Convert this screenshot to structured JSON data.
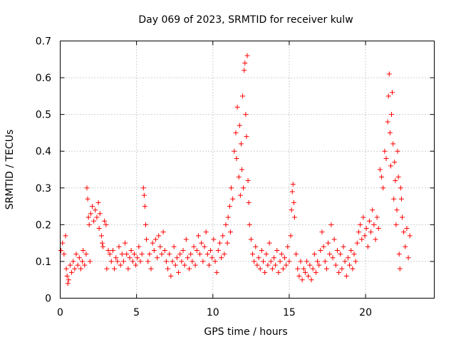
{
  "chart_data": {
    "type": "scatter",
    "title": "Day 069 of 2023, SRMTID for receiver kulw",
    "xlabel": "GPS time / hours",
    "ylabel": "SRMTID / TECUs",
    "xlim": [
      0,
      24.5
    ],
    "ylim": [
      0,
      0.7
    ],
    "xticks": [
      0,
      5,
      10,
      15,
      20
    ],
    "yticks": [
      0,
      0.1,
      0.2,
      0.3,
      0.4,
      0.5,
      0.6,
      0.7
    ],
    "xtick_labels": [
      "0",
      "5",
      "10",
      "15",
      "20"
    ],
    "ytick_labels": [
      "0",
      "0.1",
      "0.2",
      "0.3",
      "0.4",
      "0.5",
      "0.6",
      "0.7"
    ],
    "grid": true,
    "marker": "+",
    "color": "#ff0000",
    "series": [
      {
        "name": "kulw",
        "points": [
          [
            0.05,
            0.13
          ],
          [
            0.15,
            0.15
          ],
          [
            0.25,
            0.12
          ],
          [
            0.35,
            0.17
          ],
          [
            0.4,
            0.08
          ],
          [
            0.45,
            0.06
          ],
          [
            0.5,
            0.04
          ],
          [
            0.55,
            0.05
          ],
          [
            0.65,
            0.09
          ],
          [
            0.75,
            0.07
          ],
          [
            0.85,
            0.1
          ],
          [
            0.95,
            0.08
          ],
          [
            1.05,
            0.12
          ],
          [
            1.15,
            0.09
          ],
          [
            1.25,
            0.11
          ],
          [
            1.35,
            0.08
          ],
          [
            1.45,
            0.1
          ],
          [
            1.5,
            0.13
          ],
          [
            1.6,
            0.09
          ],
          [
            1.7,
            0.12
          ],
          [
            1.75,
            0.3
          ],
          [
            1.8,
            0.27
          ],
          [
            1.85,
            0.22
          ],
          [
            1.9,
            0.2
          ],
          [
            1.95,
            0.1
          ],
          [
            2.0,
            0.23
          ],
          [
            2.1,
            0.25
          ],
          [
            2.2,
            0.21
          ],
          [
            2.3,
            0.24
          ],
          [
            2.4,
            0.22
          ],
          [
            2.5,
            0.26
          ],
          [
            2.55,
            0.19
          ],
          [
            2.6,
            0.23
          ],
          [
            2.7,
            0.17
          ],
          [
            2.75,
            0.15
          ],
          [
            2.8,
            0.14
          ],
          [
            2.9,
            0.21
          ],
          [
            3.0,
            0.2
          ],
          [
            3.05,
            0.08
          ],
          [
            3.15,
            0.13
          ],
          [
            3.25,
            0.12
          ],
          [
            3.35,
            0.1
          ],
          [
            3.45,
            0.13
          ],
          [
            3.55,
            0.08
          ],
          [
            3.65,
            0.11
          ],
          [
            3.75,
            0.1
          ],
          [
            3.85,
            0.14
          ],
          [
            3.95,
            0.09
          ],
          [
            4.05,
            0.12
          ],
          [
            4.15,
            0.1
          ],
          [
            4.25,
            0.15
          ],
          [
            4.35,
            0.12
          ],
          [
            4.45,
            0.08
          ],
          [
            4.55,
            0.11
          ],
          [
            4.65,
            0.13
          ],
          [
            4.75,
            0.1
          ],
          [
            4.85,
            0.12
          ],
          [
            4.95,
            0.09
          ],
          [
            5.05,
            0.11
          ],
          [
            5.15,
            0.14
          ],
          [
            5.25,
            0.1
          ],
          [
            5.35,
            0.12
          ],
          [
            5.45,
            0.3
          ],
          [
            5.5,
            0.28
          ],
          [
            5.55,
            0.25
          ],
          [
            5.6,
            0.2
          ],
          [
            5.65,
            0.16
          ],
          [
            5.75,
            0.1
          ],
          [
            5.85,
            0.12
          ],
          [
            5.95,
            0.08
          ],
          [
            6.05,
            0.15
          ],
          [
            6.15,
            0.13
          ],
          [
            6.25,
            0.16
          ],
          [
            6.35,
            0.11
          ],
          [
            6.45,
            0.17
          ],
          [
            6.55,
            0.14
          ],
          [
            6.65,
            0.12
          ],
          [
            6.75,
            0.18
          ],
          [
            6.85,
            0.13
          ],
          [
            6.95,
            0.1
          ],
          [
            7.05,
            0.08
          ],
          [
            7.15,
            0.12
          ],
          [
            7.25,
            0.06
          ],
          [
            7.35,
            0.1
          ],
          [
            7.45,
            0.14
          ],
          [
            7.55,
            0.09
          ],
          [
            7.65,
            0.11
          ],
          [
            7.75,
            0.07
          ],
          [
            7.85,
            0.12
          ],
          [
            7.95,
            0.1
          ],
          [
            8.05,
            0.13
          ],
          [
            8.15,
            0.09
          ],
          [
            8.25,
            0.16
          ],
          [
            8.35,
            0.11
          ],
          [
            8.45,
            0.08
          ],
          [
            8.55,
            0.12
          ],
          [
            8.65,
            0.1
          ],
          [
            8.75,
            0.14
          ],
          [
            8.85,
            0.09
          ],
          [
            8.95,
            0.13
          ],
          [
            9.05,
            0.17
          ],
          [
            9.15,
            0.12
          ],
          [
            9.25,
            0.15
          ],
          [
            9.35,
            0.1
          ],
          [
            9.45,
            0.14
          ],
          [
            9.55,
            0.18
          ],
          [
            9.65,
            0.12
          ],
          [
            9.75,
            0.09
          ],
          [
            9.85,
            0.13
          ],
          [
            9.95,
            0.11
          ],
          [
            10.05,
            0.16
          ],
          [
            10.15,
            0.1
          ],
          [
            10.25,
            0.07
          ],
          [
            10.35,
            0.13
          ],
          [
            10.45,
            0.15
          ],
          [
            10.55,
            0.11
          ],
          [
            10.65,
            0.17
          ],
          [
            10.75,
            0.12
          ],
          [
            10.85,
            0.2
          ],
          [
            10.95,
            0.15
          ],
          [
            11.0,
            0.22
          ],
          [
            11.1,
            0.25
          ],
          [
            11.15,
            0.18
          ],
          [
            11.2,
            0.3
          ],
          [
            11.3,
            0.27
          ],
          [
            11.4,
            0.4
          ],
          [
            11.5,
            0.45
          ],
          [
            11.55,
            0.38
          ],
          [
            11.6,
            0.52
          ],
          [
            11.7,
            0.33
          ],
          [
            11.75,
            0.47
          ],
          [
            11.8,
            0.28
          ],
          [
            11.85,
            0.42
          ],
          [
            11.9,
            0.35
          ],
          [
            11.95,
            0.55
          ],
          [
            12.0,
            0.3
          ],
          [
            12.05,
            0.62
          ],
          [
            12.1,
            0.64
          ],
          [
            12.15,
            0.5
          ],
          [
            12.2,
            0.44
          ],
          [
            12.25,
            0.66
          ],
          [
            12.3,
            0.32
          ],
          [
            12.35,
            0.26
          ],
          [
            12.4,
            0.2
          ],
          [
            12.5,
            0.16
          ],
          [
            12.6,
            0.12
          ],
          [
            12.7,
            0.1
          ],
          [
            12.8,
            0.14
          ],
          [
            12.9,
            0.09
          ],
          [
            13.0,
            0.11
          ],
          [
            13.1,
            0.08
          ],
          [
            13.2,
            0.13
          ],
          [
            13.3,
            0.1
          ],
          [
            13.4,
            0.07
          ],
          [
            13.5,
            0.12
          ],
          [
            13.6,
            0.09
          ],
          [
            13.7,
            0.15
          ],
          [
            13.8,
            0.1
          ],
          [
            13.9,
            0.08
          ],
          [
            14.0,
            0.11
          ],
          [
            14.1,
            0.09
          ],
          [
            14.2,
            0.13
          ],
          [
            14.3,
            0.07
          ],
          [
            14.4,
            0.1
          ],
          [
            14.5,
            0.12
          ],
          [
            14.6,
            0.08
          ],
          [
            14.7,
            0.11
          ],
          [
            14.8,
            0.09
          ],
          [
            14.9,
            0.14
          ],
          [
            15.0,
            0.1
          ],
          [
            15.1,
            0.17
          ],
          [
            15.15,
            0.24
          ],
          [
            15.2,
            0.29
          ],
          [
            15.25,
            0.31
          ],
          [
            15.3,
            0.26
          ],
          [
            15.35,
            0.22
          ],
          [
            15.45,
            0.12
          ],
          [
            15.55,
            0.08
          ],
          [
            15.65,
            0.06
          ],
          [
            15.75,
            0.1
          ],
          [
            15.85,
            0.05
          ],
          [
            15.95,
            0.08
          ],
          [
            16.05,
            0.07
          ],
          [
            16.15,
            0.1
          ],
          [
            16.25,
            0.06
          ],
          [
            16.35,
            0.09
          ],
          [
            16.45,
            0.05
          ],
          [
            16.55,
            0.08
          ],
          [
            16.65,
            0.12
          ],
          [
            16.75,
            0.07
          ],
          [
            16.85,
            0.1
          ],
          [
            16.95,
            0.09
          ],
          [
            17.05,
            0.13
          ],
          [
            17.15,
            0.18
          ],
          [
            17.25,
            0.14
          ],
          [
            17.35,
            0.1
          ],
          [
            17.45,
            0.08
          ],
          [
            17.55,
            0.15
          ],
          [
            17.65,
            0.12
          ],
          [
            17.75,
            0.2
          ],
          [
            17.85,
            0.11
          ],
          [
            17.95,
            0.16
          ],
          [
            18.05,
            0.09
          ],
          [
            18.15,
            0.13
          ],
          [
            18.25,
            0.07
          ],
          [
            18.35,
            0.12
          ],
          [
            18.45,
            0.08
          ],
          [
            18.55,
            0.14
          ],
          [
            18.65,
            0.1
          ],
          [
            18.75,
            0.06
          ],
          [
            18.85,
            0.11
          ],
          [
            18.95,
            0.09
          ],
          [
            19.05,
            0.13
          ],
          [
            19.15,
            0.08
          ],
          [
            19.25,
            0.12
          ],
          [
            19.35,
            0.1
          ],
          [
            19.45,
            0.15
          ],
          [
            19.55,
            0.18
          ],
          [
            19.65,
            0.2
          ],
          [
            19.75,
            0.16
          ],
          [
            19.85,
            0.22
          ],
          [
            19.95,
            0.17
          ],
          [
            20.05,
            0.19
          ],
          [
            20.15,
            0.14
          ],
          [
            20.25,
            0.21
          ],
          [
            20.35,
            0.18
          ],
          [
            20.45,
            0.24
          ],
          [
            20.55,
            0.2
          ],
          [
            20.65,
            0.16
          ],
          [
            20.75,
            0.22
          ],
          [
            20.85,
            0.19
          ],
          [
            20.95,
            0.35
          ],
          [
            21.05,
            0.33
          ],
          [
            21.15,
            0.3
          ],
          [
            21.25,
            0.4
          ],
          [
            21.35,
            0.38
          ],
          [
            21.45,
            0.48
          ],
          [
            21.5,
            0.55
          ],
          [
            21.55,
            0.61
          ],
          [
            21.6,
            0.45
          ],
          [
            21.65,
            0.36
          ],
          [
            21.7,
            0.5
          ],
          [
            21.75,
            0.56
          ],
          [
            21.8,
            0.42
          ],
          [
            21.85,
            0.27
          ],
          [
            21.9,
            0.37
          ],
          [
            21.95,
            0.32
          ],
          [
            22.0,
            0.2
          ],
          [
            22.05,
            0.24
          ],
          [
            22.1,
            0.4
          ],
          [
            22.15,
            0.33
          ],
          [
            22.2,
            0.12
          ],
          [
            22.25,
            0.08
          ],
          [
            22.3,
            0.3
          ],
          [
            22.35,
            0.27
          ],
          [
            22.4,
            0.22
          ],
          [
            22.5,
            0.18
          ],
          [
            22.6,
            0.14
          ],
          [
            22.7,
            0.19
          ],
          [
            22.8,
            0.11
          ],
          [
            22.9,
            0.17
          ]
        ]
      }
    ]
  }
}
